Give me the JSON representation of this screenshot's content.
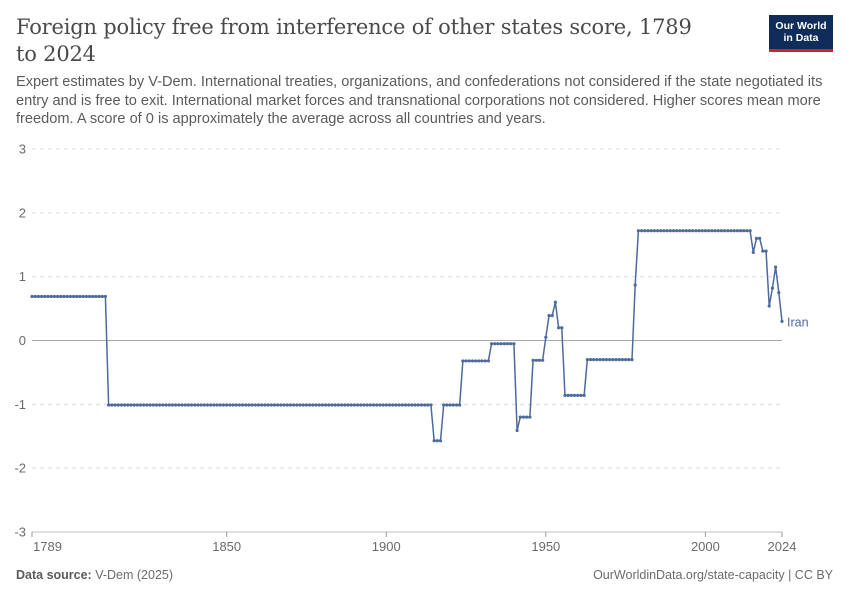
{
  "header": {
    "title": "Foreign policy free from interference of other states score, 1789 to 2024",
    "subtitle": "Expert estimates by V-Dem. International treaties, organizations, and confederations not considered if the state negotiated its entry and is free to exit. International market forces and transnational corporations not considered. Higher scores mean more freedom. A score of 0 is approximately the average across all countries and years."
  },
  "logo": {
    "line1": "Our World",
    "line2": "in Data",
    "bg_color": "#0f2c5a",
    "accent_color": "#ce261e"
  },
  "footer": {
    "source_label": "Data source:",
    "source_value": "V-Dem (2025)",
    "url": "OurWorldinData.org/state-capacity | CC BY"
  },
  "chart_data": {
    "type": "line",
    "title": "Foreign policy free from interference of other states score, 1789 to 2024",
    "xlabel": "",
    "ylabel": "",
    "xlim": [
      1789,
      2024
    ],
    "ylim": [
      -3,
      3
    ],
    "x_ticks": [
      1789,
      1850,
      1900,
      1950,
      2000,
      2024
    ],
    "y_ticks": [
      3,
      2,
      1,
      0,
      -1,
      -2,
      -3
    ],
    "grid": "horizontal dashed",
    "line_color": "#4c6a9c",
    "series": [
      {
        "name": "Iran",
        "segments": [
          {
            "from": 1789,
            "to": 1812,
            "value": 0.69
          },
          {
            "from": 1813,
            "to": 1914,
            "value": -1.01
          },
          {
            "from": 1915,
            "to": 1917,
            "value": -1.57
          },
          {
            "from": 1918,
            "to": 1923,
            "value": -1.01
          },
          {
            "from": 1924,
            "to": 1932,
            "value": -0.32
          },
          {
            "from": 1933,
            "to": 1940,
            "value": -0.05
          },
          {
            "from": 1941,
            "to": 1941,
            "value": -1.41
          },
          {
            "from": 1942,
            "to": 1945,
            "value": -1.2
          },
          {
            "from": 1946,
            "to": 1949,
            "value": -0.31
          },
          {
            "from": 1950,
            "to": 1950,
            "value": 0.05
          },
          {
            "from": 1951,
            "to": 1952,
            "value": 0.39
          },
          {
            "from": 1953,
            "to": 1953,
            "value": 0.6
          },
          {
            "from": 1954,
            "to": 1955,
            "value": 0.2
          },
          {
            "from": 1956,
            "to": 1962,
            "value": -0.86
          },
          {
            "from": 1963,
            "to": 1977,
            "value": -0.3
          },
          {
            "from": 1978,
            "to": 1978,
            "value": 0.87
          },
          {
            "from": 1979,
            "to": 2014,
            "value": 1.72
          },
          {
            "from": 2015,
            "to": 2015,
            "value": 1.38
          },
          {
            "from": 2016,
            "to": 2017,
            "value": 1.6
          },
          {
            "from": 2018,
            "to": 2019,
            "value": 1.4
          },
          {
            "from": 2020,
            "to": 2020,
            "value": 0.54
          },
          {
            "from": 2021,
            "to": 2021,
            "value": 0.82
          },
          {
            "from": 2022,
            "to": 2022,
            "value": 1.15
          },
          {
            "from": 2023,
            "to": 2023,
            "value": 0.75
          },
          {
            "from": 2024,
            "to": 2024,
            "value": 0.3
          }
        ]
      }
    ]
  }
}
